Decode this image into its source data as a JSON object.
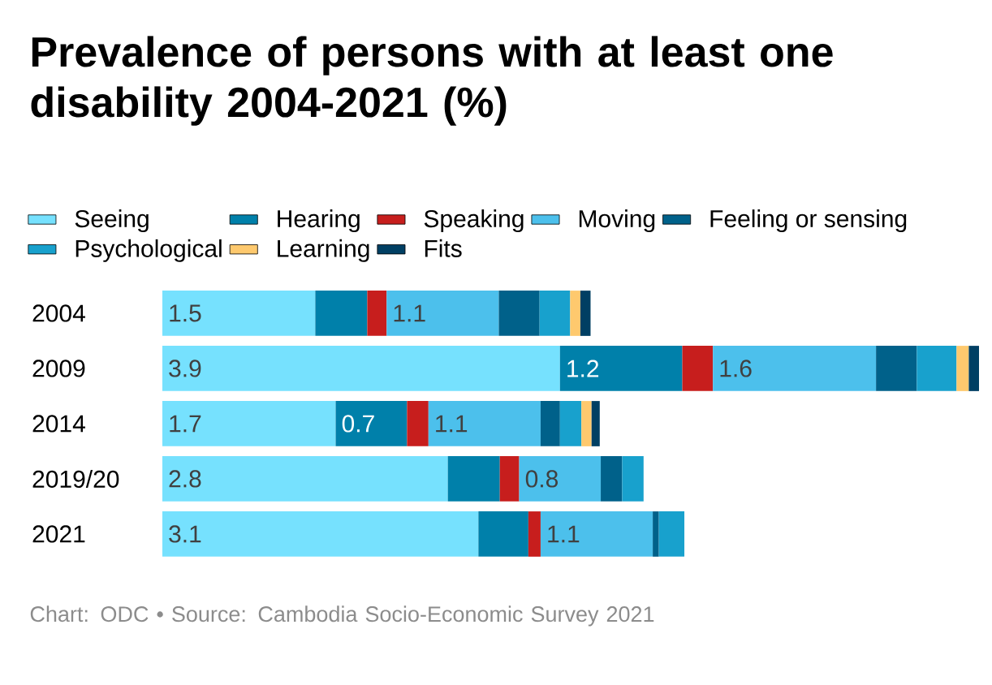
{
  "chart_data": {
    "type": "bar",
    "orientation": "horizontal",
    "stacked": true,
    "legend": "top",
    "title": "Prevalence of persons with at least one disability 2004-2021 (%)",
    "categories": [
      "2004",
      "2009",
      "2014",
      "2019/20",
      "2021"
    ],
    "series": [
      {
        "name": "Seeing",
        "color": "#76e1fe",
        "values": [
          1.5,
          3.9,
          1.7,
          2.8,
          3.1
        ],
        "value_labels": [
          "1.5",
          "3.9",
          "1.7",
          "2.8",
          "3.1"
        ]
      },
      {
        "name": "Hearing",
        "color": "#0080aa",
        "values": [
          0.51,
          1.2,
          0.7,
          0.51,
          0.49
        ],
        "value_labels": [
          null,
          "1.2",
          "0.7",
          null,
          null
        ]
      },
      {
        "name": "Speaking",
        "color": "#c71e1d",
        "values": [
          0.19,
          0.3,
          0.21,
          0.19,
          0.12
        ],
        "value_labels": [
          null,
          null,
          null,
          null,
          null
        ]
      },
      {
        "name": "Moving",
        "color": "#4cc0ec",
        "values": [
          1.1,
          1.6,
          1.1,
          0.8,
          1.1
        ],
        "value_labels": [
          "1.1",
          "1.6",
          "1.1",
          "0.8",
          "1.1"
        ]
      },
      {
        "name": "Feeling or sensing",
        "color": "#00618a",
        "values": [
          0.4,
          0.4,
          0.19,
          0.21,
          0.06
        ],
        "value_labels": [
          null,
          null,
          null,
          null,
          null
        ]
      },
      {
        "name": "Psychological",
        "color": "#18a1cd",
        "values": [
          0.3,
          0.39,
          0.21,
          0.21,
          0.25
        ],
        "value_labels": [
          null,
          null,
          null,
          null,
          null
        ]
      },
      {
        "name": "Learning",
        "color": "#fec96e",
        "values": [
          0.1,
          0.12,
          0.1,
          null,
          null
        ],
        "value_labels": [
          null,
          null,
          null,
          null,
          null
        ]
      },
      {
        "name": "Fits",
        "color": "#003f63",
        "values": [
          0.1,
          0.1,
          0.08,
          null,
          null
        ],
        "value_labels": [
          null,
          null,
          null,
          null,
          null
        ]
      }
    ],
    "annotations": [
      "Chart: ODC • Source: Cambodia Socio-Economic Survey 2021"
    ]
  }
}
